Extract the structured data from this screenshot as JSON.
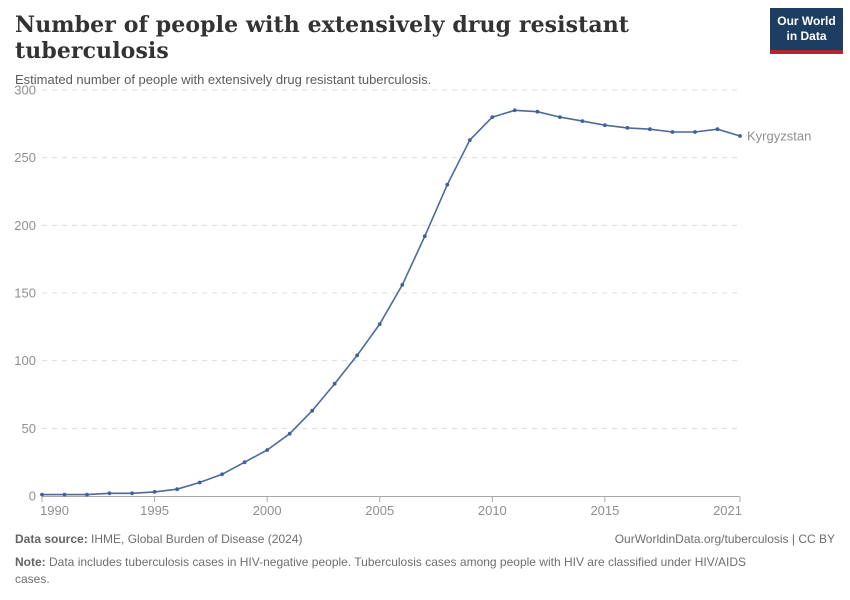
{
  "logo": {
    "line1": "Our World",
    "line2": "in Data"
  },
  "chart_data": {
    "type": "line",
    "title": "Number of people with extensively drug resistant tuberculosis",
    "subtitle": "Estimated number of people with extensively drug resistant tuberculosis.",
    "xlabel": "",
    "ylabel": "",
    "xlim": [
      1990,
      2021
    ],
    "ylim": [
      0,
      300
    ],
    "x_ticks": [
      1990,
      1995,
      2000,
      2005,
      2010,
      2015,
      2021
    ],
    "y_ticks": [
      0,
      50,
      100,
      150,
      200,
      250,
      300
    ],
    "grid": "horizontal-dashed",
    "legend_position": "end-of-line-label",
    "x": [
      1990,
      1991,
      1992,
      1993,
      1994,
      1995,
      1996,
      1997,
      1998,
      1999,
      2000,
      2001,
      2002,
      2003,
      2004,
      2005,
      2006,
      2007,
      2008,
      2009,
      2010,
      2011,
      2012,
      2013,
      2014,
      2015,
      2016,
      2017,
      2018,
      2019,
      2020,
      2021
    ],
    "series": [
      {
        "name": "Kyrgyzstan",
        "values": [
          1,
          1,
          1,
          2,
          2,
          3,
          5,
          10,
          16,
          25,
          34,
          46,
          63,
          83,
          104,
          127,
          156,
          192,
          230,
          263,
          280,
          285,
          284,
          280,
          277,
          274,
          272,
          271,
          269,
          269,
          271,
          266
        ]
      }
    ]
  },
  "colors": {
    "line": "#4c6a9c",
    "dot": "#41619b",
    "entity_label": "#4c6a9c",
    "grid": "#dcdcdc",
    "axis": "#a8a8a8",
    "tick_text": "#8f8f8f",
    "logo_bg": "#1d3d63",
    "logo_red": "#b2272d"
  },
  "footer": {
    "source_label": "Data source:",
    "source_text": " IHME, Global Burden of Disease (2024)",
    "link_text": "OurWorldinData.org/tuberculosis | CC BY",
    "note_label": "Note:",
    "note_text": " Data includes tuberculosis cases in HIV-negative people. Tuberculosis cases among people with HIV are classified under HIV/AIDS cases."
  }
}
